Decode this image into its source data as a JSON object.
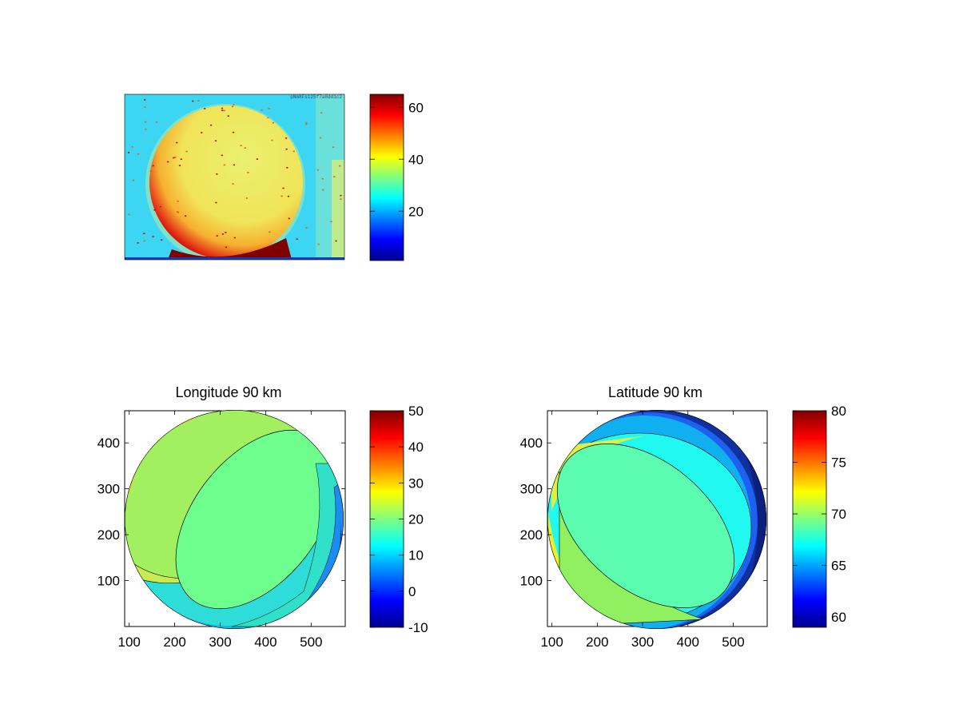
{
  "chart_data": [
    {
      "type": "heatmap",
      "title": "",
      "colorbar": {
        "ticks": [
          20,
          40,
          60
        ],
        "range": [
          1,
          65
        ],
        "colormap": "jet"
      },
      "description_colors": {
        "background": "#38d4f0",
        "disk": "#f0e860",
        "limb_hot": "#800000"
      },
      "small_text": "pNm8Fs125f7a8dd1c2"
    },
    {
      "type": "heatmap",
      "title": "Longitude 90 km",
      "xticks": [
        100,
        200,
        300,
        400,
        500
      ],
      "yticks": [
        100,
        200,
        300,
        400
      ],
      "xlim": [
        90,
        575
      ],
      "ylim": [
        0,
        470
      ],
      "colorbar": {
        "ticks": [
          -10,
          0,
          10,
          20,
          30,
          40,
          50
        ],
        "range": [
          -10,
          50
        ],
        "colormap": "jet"
      }
    },
    {
      "type": "heatmap",
      "title": "Latitude 90 km",
      "xticks": [
        100,
        200,
        300,
        400,
        500
      ],
      "yticks": [
        100,
        200,
        300,
        400
      ],
      "xlim": [
        90,
        575
      ],
      "ylim": [
        0,
        470
      ],
      "colorbar": {
        "ticks": [
          60,
          65,
          70,
          75,
          80
        ],
        "range": [
          59,
          80
        ],
        "colormap": "jet"
      }
    }
  ]
}
